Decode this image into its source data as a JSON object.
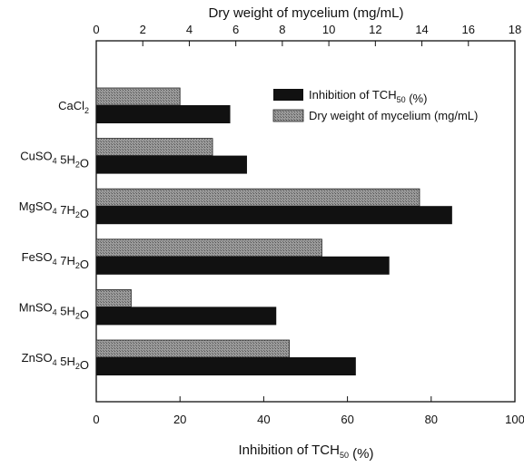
{
  "chart_data": {
    "type": "bar",
    "orientation": "horizontal",
    "categories": [
      {
        "base": "CaCl",
        "sub": "2",
        "rest": ""
      },
      {
        "base": "CuSO",
        "sub": "4",
        "rest": " 5H",
        "sub2": "2",
        "rest2": "O"
      },
      {
        "base": "MgSO",
        "sub": "4",
        "rest": " 7H",
        "sub2": "2",
        "rest2": "O"
      },
      {
        "base": "FeSO",
        "sub": "4",
        "rest": " 7H",
        "sub2": "2",
        "rest2": "O"
      },
      {
        "base": "MnSO",
        "sub": "4",
        "rest": " 5H",
        "sub2": "2",
        "rest2": "O"
      },
      {
        "base": "ZnSO",
        "sub": "4",
        "rest": " 5H",
        "sub2": "2",
        "rest2": "O"
      }
    ],
    "series": [
      {
        "name": "Inhibition of TCH50 (%)",
        "axis": "bottom",
        "color": "#111111",
        "values": [
          32,
          36,
          85,
          70,
          43,
          62
        ]
      },
      {
        "name": "Dry weight of mycelium (mg/mL)",
        "axis": "top",
        "color": "#8a8a8a",
        "pattern": "crosshatch",
        "values": [
          3.6,
          5.0,
          13.9,
          9.7,
          1.5,
          8.3
        ]
      }
    ],
    "x_bottom": {
      "label_pre": "Inhibition of TCH",
      "label_sub": "50",
      "label_post": " (%)",
      "lim": [
        0,
        100
      ],
      "ticks": [
        0,
        20,
        40,
        60,
        80,
        100
      ]
    },
    "x_top": {
      "label": "Dry weight of mycelium (mg/mL)",
      "lim": [
        0,
        18
      ],
      "ticks": [
        0,
        2,
        4,
        6,
        8,
        10,
        12,
        14,
        16,
        18
      ]
    },
    "legend": {
      "placement": "top-right",
      "entries": [
        {
          "pre": "Inhibition of TCH",
          "sub": "50",
          "post": " (%)"
        },
        {
          "pre": "Dry weight of mycelium (mg/mL)",
          "sub": "",
          "post": ""
        }
      ]
    },
    "grid": false
  }
}
